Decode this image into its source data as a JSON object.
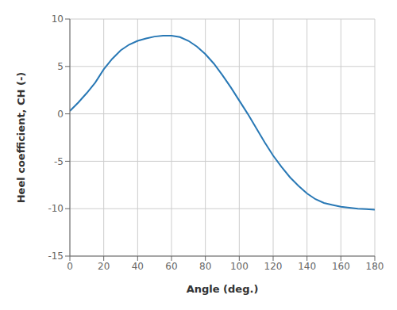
{
  "chart_data": {
    "type": "line",
    "x": [
      0,
      5,
      10,
      15,
      20,
      25,
      30,
      35,
      40,
      45,
      50,
      55,
      60,
      65,
      70,
      75,
      80,
      85,
      90,
      95,
      100,
      105,
      110,
      115,
      120,
      125,
      130,
      135,
      140,
      145,
      150,
      155,
      160,
      165,
      170,
      175,
      180
    ],
    "values": [
      0.3,
      1.2,
      2.2,
      3.3,
      4.7,
      5.8,
      6.7,
      7.3,
      7.7,
      7.95,
      8.15,
      8.25,
      8.25,
      8.1,
      7.7,
      7.1,
      6.3,
      5.3,
      4.1,
      2.8,
      1.4,
      0.0,
      -1.5,
      -3.0,
      -4.4,
      -5.6,
      -6.7,
      -7.6,
      -8.4,
      -9.0,
      -9.4,
      -9.6,
      -9.8,
      -9.9,
      -10.0,
      -10.05,
      -10.1
    ],
    "color": "#2878b5",
    "xlabel": "Angle (deg.)",
    "ylabel": "Heel coefficient, CH (-)",
    "xlim": [
      0,
      180
    ],
    "ylim": [
      -15,
      10
    ],
    "xticks": [
      0,
      20,
      40,
      60,
      80,
      100,
      120,
      140,
      160,
      180
    ],
    "yticks": [
      -15,
      -10,
      -5,
      0,
      5,
      10
    ],
    "grid": true
  }
}
